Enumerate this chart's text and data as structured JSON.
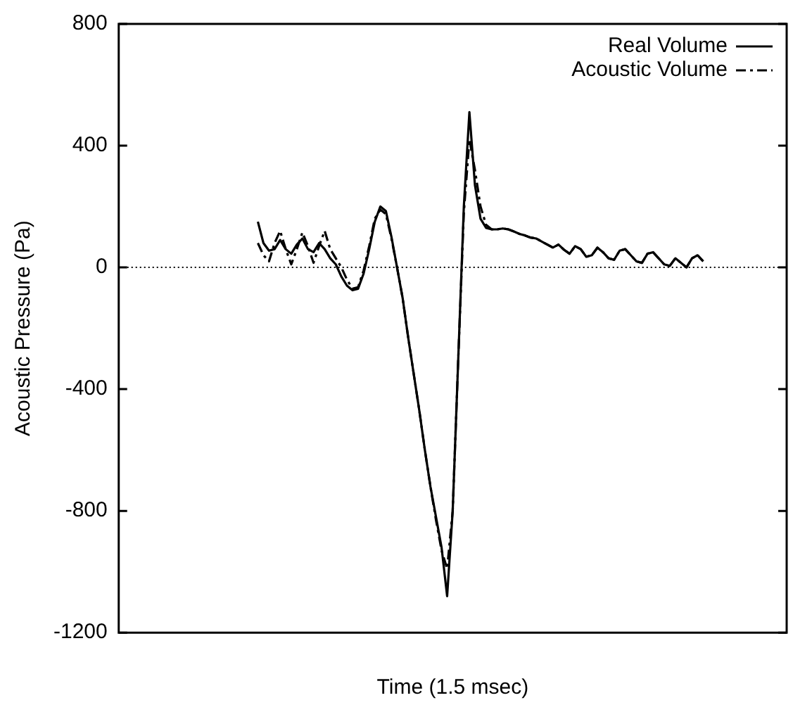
{
  "chart_data": {
    "type": "line",
    "xlabel": "Time (1.5 msec)",
    "ylabel": "Acoustic Pressure (Pa)",
    "categories": [
      null,
      null,
      null,
      null,
      null,
      null,
      null,
      null,
      null,
      null,
      null,
      null,
      null,
      null,
      null,
      null,
      null,
      null,
      null,
      null,
      null,
      null,
      null,
      null,
      null,
      null,
      null,
      null,
      null,
      null,
      null,
      null,
      null,
      null,
      null,
      null,
      null,
      null,
      null,
      null,
      null,
      null,
      null,
      null,
      null,
      null,
      null,
      null,
      null,
      null,
      null,
      null,
      null,
      null,
      null,
      null,
      null,
      null,
      null,
      null,
      null,
      null,
      null,
      null,
      null,
      null,
      null,
      null,
      null,
      null,
      null,
      null,
      null,
      null,
      null,
      null,
      null,
      null,
      null,
      null,
      null,
      null,
      null,
      null,
      null,
      null,
      null,
      null,
      null,
      null,
      null,
      null,
      null,
      null,
      null,
      null,
      null,
      null,
      null,
      null,
      null,
      null,
      null,
      null,
      null,
      null,
      null,
      null,
      null,
      null,
      null,
      null,
      null,
      null,
      null,
      null,
      null,
      null,
      null,
      null,
      null
    ],
    "series": [
      {
        "name": "Real Volume",
        "color": "#000000",
        "line_style": "solid",
        "values": [
          null,
          null,
          null,
          null,
          null,
          null,
          null,
          null,
          null,
          null,
          null,
          null,
          null,
          null,
          null,
          null,
          null,
          null,
          null,
          null,
          null,
          null,
          null,
          null,
          null,
          150,
          80,
          55,
          60,
          90,
          60,
          45,
          75,
          95,
          60,
          50,
          80,
          60,
          30,
          10,
          -30,
          -60,
          -75,
          -70,
          -20,
          60,
          150,
          200,
          185,
          100,
          0,
          -100,
          -230,
          -350,
          -470,
          -600,
          -720,
          -820,
          -920,
          -1080,
          -800,
          -300,
          200,
          510,
          270,
          160,
          130,
          125,
          125,
          128,
          125,
          118,
          110,
          105,
          98,
          95,
          85,
          75,
          65,
          75,
          58,
          45,
          70,
          60,
          35,
          40,
          65,
          50,
          30,
          25,
          55,
          60,
          40,
          20,
          15,
          45,
          50,
          30,
          10,
          5,
          30,
          15,
          0,
          30,
          40,
          20,
          null,
          null,
          null,
          null,
          null,
          null,
          null,
          null,
          null,
          null,
          null,
          null,
          null,
          null,
          null
        ]
      },
      {
        "name": "Acoustic Volume",
        "color": "#000000",
        "line_style": "dashed",
        "values": [
          null,
          null,
          null,
          null,
          null,
          null,
          null,
          null,
          null,
          null,
          null,
          null,
          null,
          null,
          null,
          null,
          null,
          null,
          null,
          null,
          null,
          null,
          null,
          null,
          null,
          80,
          40,
          20,
          80,
          120,
          60,
          10,
          60,
          115,
          70,
          15,
          70,
          120,
          60,
          30,
          0,
          -40,
          -70,
          -65,
          -10,
          70,
          160,
          190,
          175,
          95,
          0,
          -100,
          -230,
          -350,
          -470,
          -600,
          -720,
          -830,
          -930,
          -990,
          -800,
          -300,
          180,
          420,
          320,
          200,
          140,
          125,
          125,
          128,
          125,
          118,
          110,
          105,
          98,
          95,
          85,
          75,
          65,
          75,
          58,
          45,
          70,
          60,
          35,
          40,
          65,
          50,
          30,
          25,
          55,
          60,
          40,
          20,
          15,
          45,
          50,
          30,
          10,
          5,
          30,
          15,
          0,
          30,
          40,
          20,
          null,
          null,
          null,
          null,
          null,
          null,
          null,
          null,
          null,
          null,
          null,
          null,
          null,
          null,
          null
        ]
      }
    ],
    "ylim": [
      -1200,
      800
    ],
    "yticks": [
      -1200,
      -800,
      -400,
      0,
      400,
      800
    ],
    "grid": false,
    "legend": "top right",
    "marker": "none",
    "ref_lines": [
      {
        "axis": "y",
        "value": 0,
        "line_style": "dotted",
        "color": "#000000"
      }
    ]
  }
}
